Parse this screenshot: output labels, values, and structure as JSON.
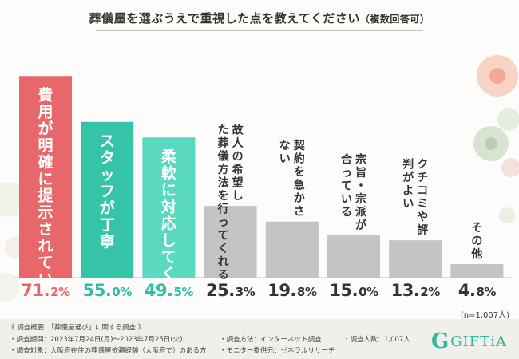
{
  "title": "葬儀屋を選ぶうえで重視した点を教えてください",
  "title_sub": "（複数回答可）",
  "chart_data": {
    "type": "bar",
    "title": "葬儀屋を選ぶうえで重視した点を教えてください（複数回答可）",
    "categories": [
      "費用が明確に提示されている",
      "スタッフが丁寧",
      "柔軟に対応してくれる",
      "故人の希望した葬儀方法を行ってくれる",
      "契約を急かさない",
      "宗旨・宗派が合っている",
      "クチコミや評判がよい",
      "その他"
    ],
    "values": [
      71.2,
      55.0,
      49.5,
      25.3,
      19.8,
      15.0,
      13.2,
      4.8
    ],
    "unit": "%",
    "ylim": [
      0,
      80
    ],
    "colors": [
      "#e8676b",
      "#36c4a8",
      "#5ad9c1",
      "#c4c4c4",
      "#c4c4c4",
      "#c4c4c4",
      "#c4c4c4",
      "#c4c4c4"
    ],
    "pct_colors": [
      "#e8676b",
      "#2fbea3",
      "#2fbea3",
      "#333333",
      "#333333",
      "#333333",
      "#333333",
      "#333333"
    ],
    "value_labels": [
      {
        "num": "71.",
        "unit": "2%"
      },
      {
        "num": "55.",
        "unit": "0%"
      },
      {
        "num": "49.",
        "unit": "5%"
      },
      {
        "num": "25.",
        "unit": "3%"
      },
      {
        "num": "19.",
        "unit": "8%"
      },
      {
        "num": "15.",
        "unit": "0%"
      },
      {
        "num": "13.",
        "unit": "2%"
      },
      {
        "num": "4.",
        "unit": "8%"
      }
    ],
    "sample_size": "(n=1,007人)"
  },
  "footer": {
    "survey_title": "《 調査概要：「葬儀屋選び」に関する調査 》",
    "period": "・調査期間：2023年7月24日(月)～2023年7月25日(火)",
    "target": "・調査対象：大阪府在住の葬儀屋依頼経験（大阪府で）のある方",
    "method": "・調査方法：インターネット調査",
    "provider": "・モニター提供元：ゼネラルリサーチ",
    "count": "・調査人数：1,007人"
  },
  "logo": {
    "mark": "G",
    "text": "GIFTiA"
  }
}
